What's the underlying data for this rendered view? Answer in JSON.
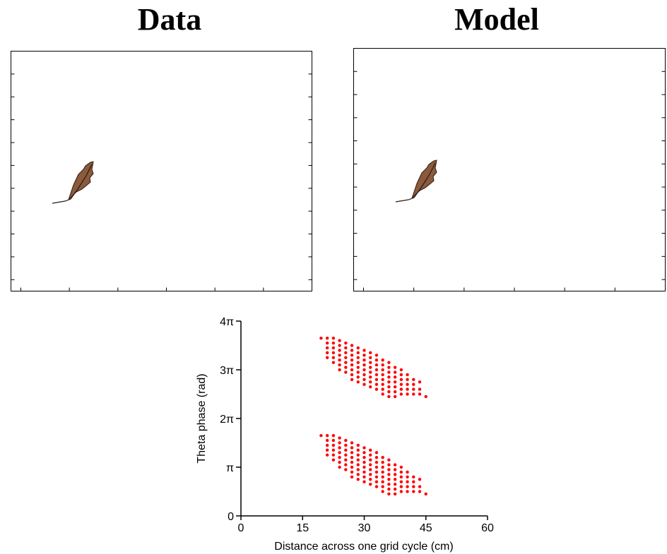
{
  "panels": [
    {
      "title": "Data"
    },
    {
      "title": "Model"
    }
  ],
  "chart_data": {
    "type": "scatter",
    "color": "#ff0000",
    "xlabel": "Distance across one grid cycle (cm)",
    "ylabel": "Theta phase (rad)",
    "xlim": [
      0,
      60
    ],
    "xticks": [
      0,
      15,
      30,
      45,
      60
    ],
    "ylim": [
      0,
      4
    ],
    "yticks": [
      0,
      {
        "value": 1,
        "label": "π"
      },
      {
        "value": 2,
        "label": "2π"
      },
      {
        "value": 3,
        "label": "3π"
      },
      {
        "value": 4,
        "label": "4π"
      }
    ],
    "x": [
      19.5,
      21,
      21,
      21,
      21,
      21,
      22.5,
      22.5,
      22.5,
      22.5,
      22.5,
      22.5,
      24,
      24,
      24,
      24,
      24,
      24,
      24,
      25.5,
      25.5,
      25.5,
      25.5,
      25.5,
      25.5,
      25.5,
      27,
      27,
      27,
      27,
      27,
      27,
      27,
      27,
      28.5,
      28.5,
      28.5,
      28.5,
      28.5,
      28.5,
      28.5,
      28.5,
      30,
      30,
      30,
      30,
      30,
      30,
      30,
      30,
      31.5,
      31.5,
      31.5,
      31.5,
      31.5,
      31.5,
      31.5,
      31.5,
      33,
      33,
      33,
      33,
      33,
      33,
      33,
      33,
      34.5,
      34.5,
      34.5,
      34.5,
      34.5,
      34.5,
      34.5,
      34.5,
      36,
      36,
      36,
      36,
      36,
      36,
      36,
      36,
      37.5,
      37.5,
      37.5,
      37.5,
      37.5,
      37.5,
      37.5,
      39,
      39,
      39,
      39,
      39,
      39,
      40.5,
      40.5,
      40.5,
      40.5,
      40.5,
      42,
      42,
      42,
      42,
      43.5,
      43.5,
      43.5,
      45,
      19.5,
      21,
      21,
      21,
      21,
      21,
      22.5,
      22.5,
      22.5,
      22.5,
      22.5,
      22.5,
      24,
      24,
      24,
      24,
      24,
      24,
      24,
      25.5,
      25.5,
      25.5,
      25.5,
      25.5,
      25.5,
      25.5,
      27,
      27,
      27,
      27,
      27,
      27,
      27,
      27,
      28.5,
      28.5,
      28.5,
      28.5,
      28.5,
      28.5,
      28.5,
      28.5,
      30,
      30,
      30,
      30,
      30,
      30,
      30,
      30,
      31.5,
      31.5,
      31.5,
      31.5,
      31.5,
      31.5,
      31.5,
      31.5,
      33,
      33,
      33,
      33,
      33,
      33,
      33,
      33,
      34.5,
      34.5,
      34.5,
      34.5,
      34.5,
      34.5,
      34.5,
      34.5,
      36,
      36,
      36,
      36,
      36,
      36,
      36,
      36,
      37.5,
      37.5,
      37.5,
      37.5,
      37.5,
      37.5,
      37.5,
      39,
      39,
      39,
      39,
      39,
      39,
      40.5,
      40.5,
      40.5,
      40.5,
      40.5,
      42,
      42,
      42,
      42,
      43.5,
      43.5,
      43.5,
      45
    ],
    "values": [
      3.65,
      3.65,
      3.55,
      3.45,
      3.35,
      3.25,
      3.65,
      3.55,
      3.45,
      3.35,
      3.25,
      3.15,
      3.6,
      3.5,
      3.4,
      3.3,
      3.2,
      3.1,
      3.0,
      3.55,
      3.45,
      3.35,
      3.25,
      3.15,
      3.05,
      2.95,
      3.5,
      3.4,
      3.3,
      3.2,
      3.1,
      3.0,
      2.9,
      2.8,
      3.45,
      3.35,
      3.25,
      3.15,
      3.05,
      2.95,
      2.85,
      2.75,
      3.4,
      3.3,
      3.2,
      3.1,
      3.0,
      2.9,
      2.8,
      2.7,
      3.35,
      3.25,
      3.15,
      3.05,
      2.95,
      2.85,
      2.75,
      2.65,
      3.3,
      3.2,
      3.1,
      3.0,
      2.9,
      2.8,
      2.7,
      2.6,
      3.2,
      3.1,
      3.0,
      2.9,
      2.8,
      2.7,
      2.6,
      2.5,
      3.15,
      3.05,
      2.95,
      2.85,
      2.75,
      2.65,
      2.55,
      2.45,
      3.05,
      2.95,
      2.85,
      2.75,
      2.65,
      2.55,
      2.45,
      3.0,
      2.9,
      2.8,
      2.7,
      2.6,
      2.5,
      2.9,
      2.8,
      2.7,
      2.6,
      2.5,
      2.8,
      2.7,
      2.6,
      2.5,
      2.75,
      2.6,
      2.5,
      2.45,
      1.65,
      1.65,
      1.55,
      1.45,
      1.35,
      1.25,
      1.65,
      1.55,
      1.45,
      1.35,
      1.25,
      1.15,
      1.6,
      1.5,
      1.4,
      1.3,
      1.2,
      1.1,
      1.0,
      1.55,
      1.45,
      1.35,
      1.25,
      1.15,
      1.05,
      0.95,
      1.5,
      1.4,
      1.3,
      1.2,
      1.1,
      1.0,
      0.9,
      0.8,
      1.45,
      1.35,
      1.25,
      1.15,
      1.05,
      0.95,
      0.85,
      0.75,
      1.4,
      1.3,
      1.2,
      1.1,
      1.0,
      0.9,
      0.8,
      0.7,
      1.35,
      1.25,
      1.15,
      1.05,
      0.95,
      0.85,
      0.75,
      0.65,
      1.3,
      1.2,
      1.1,
      1.0,
      0.9,
      0.8,
      0.7,
      0.6,
      1.2,
      1.1,
      1.0,
      0.9,
      0.8,
      0.7,
      0.6,
      0.5,
      1.15,
      1.05,
      0.95,
      0.85,
      0.75,
      0.65,
      0.55,
      0.45,
      1.05,
      0.95,
      0.85,
      0.75,
      0.65,
      0.55,
      0.45,
      1.0,
      0.9,
      0.8,
      0.7,
      0.6,
      0.5,
      0.9,
      0.8,
      0.7,
      0.6,
      0.5,
      0.8,
      0.7,
      0.6,
      0.5,
      0.75,
      0.6,
      0.5,
      0.45
    ]
  }
}
